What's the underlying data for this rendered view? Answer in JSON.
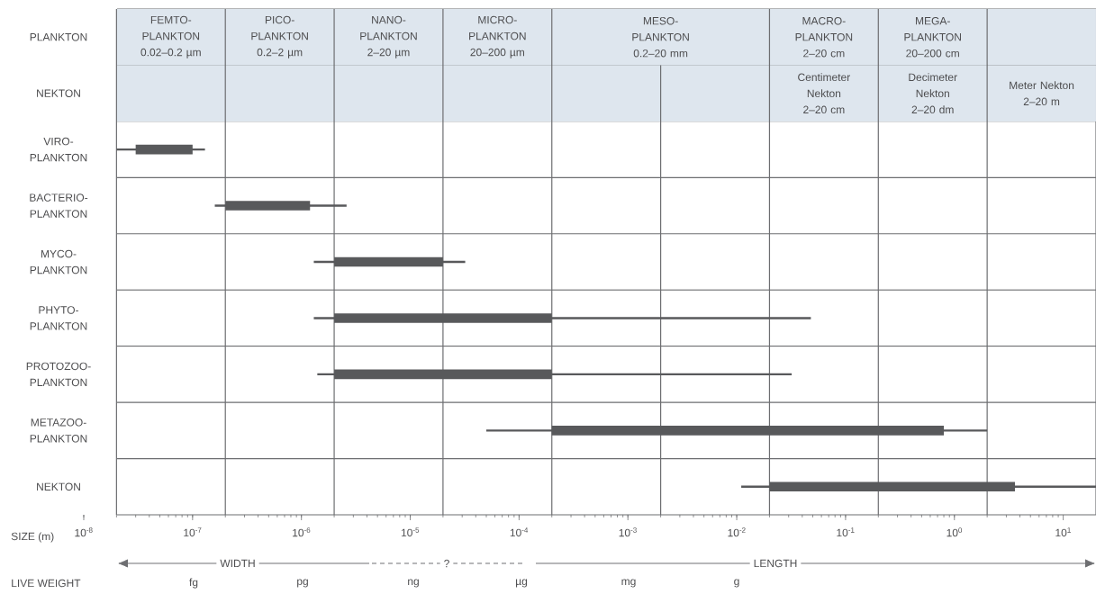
{
  "chart_data": {
    "type": "bar",
    "orientation": "horizontal",
    "log": "x",
    "categories": [
      "PLANKTON",
      "NEKTON",
      "VIRO-PLANKTON",
      "BACTERIO-PLANKTON",
      "MYCO-PLANKTON",
      "PHYTO-PLANKTON",
      "PROTOZOO-PLANKTON",
      "METAZOO-PLANKTON",
      "NEKTON"
    ],
    "series": [
      {
        "color": "#58595b",
        "base": [
          null,
          null,
          3e-08,
          2e-07,
          2e-06,
          2e-06,
          2e-06,
          0.0002,
          0.02
        ],
        "values": [
          null,
          null,
          7e-08,
          1e-06,
          1.8e-05,
          0.000198,
          0.000198,
          0.7998,
          3.58
        ],
        "errors": [
          null,
          null,
          [
            2e-08,
            1.3e-07
          ],
          [
            1.6e-07,
            2.6e-06
          ],
          [
            1.3e-06,
            3.2e-05
          ],
          [
            1.3e-06,
            0.048
          ],
          [
            1.4e-06,
            0.032
          ],
          [
            5e-05,
            2
          ],
          [
            0.011,
            20.0
          ]
        ]
      }
    ],
    "xlabel": "SIZE (m)",
    "xlim": [
      1e-08,
      20.0
    ],
    "xticks": [
      {
        "value": 1e-08,
        "label": "10$^{-8}$"
      },
      {
        "value": 1e-07,
        "label": "10$^{-7}$"
      },
      {
        "value": 1e-06,
        "label": "10$^{-6}$"
      },
      {
        "value": 1e-05,
        "label": "10$^{-5}$"
      },
      {
        "value": 0.0001,
        "label": "10$^{-4}$"
      },
      {
        "value": 0.001,
        "label": "10$^{-3}$"
      },
      {
        "value": 0.01,
        "label": "10$^{-2}$"
      },
      {
        "value": 0.1,
        "label": "10$^{-1}$"
      },
      {
        "value": 1,
        "label": "10$^{0}$"
      },
      {
        "value": 10,
        "label": "10$^{1}$"
      }
    ],
    "ref_lines": [
      {
        "axis": "x",
        "value": 2e-08
      },
      {
        "axis": "x",
        "value": 2e-07
      },
      {
        "axis": "x",
        "value": 2e-06
      },
      {
        "axis": "x",
        "value": 2e-05
      },
      {
        "axis": "x",
        "value": 0.0002
      },
      {
        "axis": "x",
        "value": 0.002
      },
      {
        "axis": "x",
        "value": 0.02
      },
      {
        "axis": "x",
        "value": 0.2
      },
      {
        "axis": "x",
        "value": 2
      }
    ],
    "bands": [
      {
        "axis": "x",
        "from": 2e-08,
        "to": 2e-07,
        "label": "FEMTO-PLANKTON 0.02–0.2 µm"
      },
      {
        "axis": "x",
        "from": 2e-07,
        "to": 2e-06,
        "label": "PICO-PLANKTON 0.2–2 µm"
      },
      {
        "axis": "x",
        "from": 2e-06,
        "to": 2e-05,
        "label": "NANO-PLANKTON 2–20 µm"
      },
      {
        "axis": "x",
        "from": 2e-05,
        "to": 0.0002,
        "label": "MICRO-PLANKTON 20–200 µm"
      },
      {
        "axis": "x",
        "from": 0.0002,
        "to": 0.02,
        "label": "MESO-PLANKTON 0.2–20 mm"
      },
      {
        "axis": "x",
        "from": 0.02,
        "to": 0.2,
        "label": "MACRO-PLANKTON 2–20 cm"
      },
      {
        "axis": "x",
        "from": 0.2,
        "to": 2,
        "label": "MEGA-PLANKTON 20–200 cm"
      },
      {
        "axis": "x",
        "from": 2,
        "to": 20.0
      },
      {
        "axis": "x",
        "from": 2e-08,
        "to": 2e-07
      },
      {
        "axis": "x",
        "from": 2e-07,
        "to": 2e-06
      },
      {
        "axis": "x",
        "from": 2e-06,
        "to": 2e-05
      },
      {
        "axis": "x",
        "from": 2e-05,
        "to": 0.0002
      },
      {
        "axis": "x",
        "from": 0.0002,
        "to": 0.002
      },
      {
        "axis": "x",
        "from": 0.002,
        "to": 0.02
      },
      {
        "axis": "x",
        "from": 0.02,
        "to": 0.2,
        "label": "Centimeter Nekton 2–20 cm"
      },
      {
        "axis": "x",
        "from": 0.2,
        "to": 2,
        "label": "Decimeter Nekton 2–20 dm"
      },
      {
        "axis": "x",
        "from": 2,
        "to": 20.0,
        "label": "Meter Nekton 2–20 m"
      }
    ],
    "annotations": [
      "WIDTH",
      "?",
      "LENGTH",
      "LIVE WEIGHT",
      "fg",
      "pg",
      "ng",
      "µg",
      "mg",
      "g"
    ]
  }
}
